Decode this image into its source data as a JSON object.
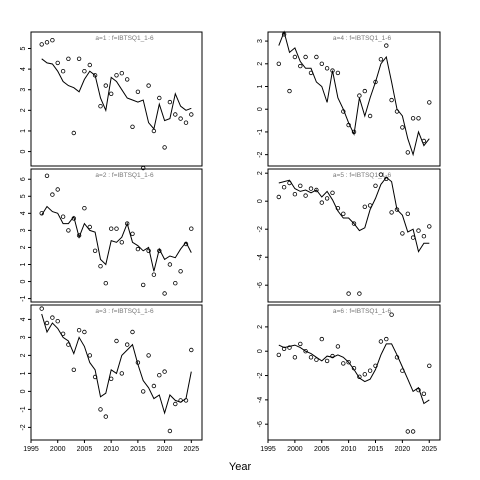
{
  "chart_data": {
    "type": "scatter",
    "xlabel": "Year",
    "x_ticks": [
      1995,
      2000,
      2005,
      2010,
      2015,
      2020,
      2025
    ],
    "xlim": [
      1995,
      2027
    ],
    "panels": [
      {
        "label": "a=1  :  f=IBTSQ1_1-6",
        "ylim": [
          -0.7,
          5.8
        ],
        "y_ticks": [
          0,
          1,
          2,
          3,
          4,
          5
        ],
        "fitted": {
          "x": [
            1997,
            1998,
            1999,
            2000,
            2001,
            2002,
            2003,
            2004,
            2005,
            2006,
            2007,
            2008,
            2009,
            2010,
            2011,
            2012,
            2013,
            2014,
            2015,
            2016,
            2017,
            2018,
            2019,
            2020,
            2021,
            2022,
            2023,
            2024,
            2025
          ],
          "y": [
            4.5,
            4.3,
            4.25,
            3.9,
            3.4,
            3.2,
            3.1,
            2.9,
            3.5,
            3.9,
            3.7,
            2.6,
            2.0,
            3.6,
            3.4,
            3.0,
            2.6,
            2.5,
            2.4,
            2.5,
            1.4,
            1.1,
            2.3,
            1.5,
            1.6,
            2.8,
            2.2,
            2.0,
            2.1
          ]
        },
        "observed": {
          "x": [
            1997,
            1998,
            1999,
            2000,
            2001,
            2002,
            2003,
            2004,
            2005,
            2006,
            2007,
            2008,
            2009,
            2010,
            2011,
            2012,
            2013,
            2014,
            2015,
            2016,
            2017,
            2018,
            2019,
            2020,
            2021,
            2022,
            2023,
            2024,
            2025
          ],
          "y": [
            5.2,
            5.3,
            5.4,
            4.3,
            3.9,
            4.5,
            0.9,
            4.5,
            3.9,
            4.2,
            3.7,
            2.2,
            3.2,
            2.8,
            3.7,
            3.8,
            3.5,
            1.2,
            2.9,
            -0.8,
            3.2,
            1.0,
            2.6,
            0.2,
            2.4,
            1.8,
            1.6,
            1.4,
            1.8
          ]
        }
      },
      {
        "label": "a=4  :  f=IBTSQ1_1-6",
        "ylim": [
          -2.5,
          3.4
        ],
        "y_ticks": [
          -2,
          -1,
          0,
          1,
          2,
          3
        ],
        "fitted": {
          "x": [
            1997,
            1998,
            1999,
            2000,
            2001,
            2002,
            2003,
            2004,
            2005,
            2006,
            2007,
            2008,
            2009,
            2010,
            2011,
            2012,
            2013,
            2014,
            2015,
            2016,
            2017,
            2018,
            2019,
            2020,
            2021,
            2022,
            2023,
            2024,
            2025
          ],
          "y": [
            2.8,
            3.4,
            2.5,
            2.7,
            2.1,
            1.8,
            1.8,
            1.2,
            1.0,
            0.3,
            1.7,
            0.5,
            0.0,
            -0.6,
            -1.1,
            0.5,
            -0.3,
            0.5,
            1.2,
            2.0,
            2.3,
            1.2,
            0.0,
            -0.3,
            -1.3,
            -2.0,
            -1.0,
            -1.6,
            -1.3
          ]
        },
        "observed": {
          "x": [
            1997,
            1998,
            1999,
            2000,
            2001,
            2002,
            2003,
            2004,
            2005,
            2006,
            2007,
            2008,
            2009,
            2010,
            2011,
            2012,
            2013,
            2014,
            2015,
            2016,
            2017,
            2018,
            2019,
            2020,
            2021,
            2022,
            2023,
            2024,
            2025
          ],
          "y": [
            2.0,
            3.3,
            0.8,
            2.3,
            1.9,
            2.3,
            1.6,
            2.3,
            2.0,
            1.8,
            1.7,
            1.6,
            -0.1,
            -0.7,
            -1.0,
            0.6,
            0.8,
            -0.3,
            1.2,
            2.2,
            2.8,
            0.4,
            -0.1,
            -0.8,
            -1.9,
            -0.4,
            -0.4,
            -1.4,
            0.3
          ]
        }
      },
      {
        "label": "a=2  :  f=IBTSQ1_1-6",
        "ylim": [
          -1.2,
          6.6
        ],
        "y_ticks": [
          -1,
          0,
          1,
          2,
          3,
          4,
          5,
          6
        ],
        "fitted": {
          "x": [
            1997,
            1998,
            1999,
            2000,
            2001,
            2002,
            2003,
            2004,
            2005,
            2006,
            2007,
            2008,
            2009,
            2010,
            2011,
            2012,
            2013,
            2014,
            2015,
            2016,
            2017,
            2018,
            2019,
            2020,
            2021,
            2022,
            2023,
            2024,
            2025
          ],
          "y": [
            3.9,
            4.4,
            4.1,
            4.0,
            3.4,
            3.4,
            3.8,
            2.6,
            3.4,
            3.0,
            2.9,
            1.3,
            1.0,
            2.4,
            2.3,
            2.6,
            3.4,
            2.3,
            2.1,
            1.8,
            2.0,
            0.6,
            1.9,
            1.3,
            1.5,
            1.4,
            1.9,
            2.3,
            1.7
          ]
        },
        "observed": {
          "x": [
            1997,
            1998,
            1999,
            2000,
            2001,
            2002,
            2003,
            2004,
            2005,
            2006,
            2007,
            2008,
            2009,
            2010,
            2011,
            2012,
            2013,
            2014,
            2015,
            2016,
            2017,
            2018,
            2019,
            2020,
            2021,
            2022,
            2023,
            2024,
            2025
          ],
          "y": [
            4.0,
            6.2,
            5.1,
            5.4,
            3.8,
            3.0,
            3.7,
            2.7,
            4.3,
            3.2,
            1.8,
            0.9,
            -0.1,
            3.1,
            3.1,
            2.3,
            3.4,
            2.8,
            1.9,
            -0.2,
            1.8,
            0.4,
            1.8,
            -0.7,
            1.0,
            -0.1,
            0.6,
            2.2,
            3.1
          ]
        }
      },
      {
        "label": "a=5  :  f=IBTSQ1_1-6",
        "ylim": [
          -7.2,
          2.3
        ],
        "y_ticks": [
          -6,
          -4,
          -2,
          0,
          2
        ],
        "fitted": {
          "x": [
            1997,
            1998,
            1999,
            2000,
            2001,
            2002,
            2003,
            2004,
            2005,
            2006,
            2007,
            2008,
            2009,
            2010,
            2011,
            2012,
            2013,
            2014,
            2015,
            2016,
            2017,
            2018,
            2019,
            2020,
            2021,
            2022,
            2023,
            2024,
            2025
          ],
          "y": [
            1.3,
            1.4,
            1.5,
            0.9,
            0.7,
            0.8,
            0.6,
            0.8,
            0.3,
            0.7,
            0.1,
            -0.7,
            -1.2,
            -1.2,
            -1.6,
            -2.1,
            -1.9,
            -0.6,
            0.2,
            1.2,
            1.7,
            1.4,
            -0.6,
            -1.0,
            -2.2,
            -2.0,
            -3.6,
            -3.0,
            -3.0
          ]
        },
        "observed": {
          "x": [
            1997,
            1998,
            1999,
            2000,
            2001,
            2002,
            2003,
            2004,
            2005,
            2006,
            2007,
            2008,
            2009,
            2010,
            2011,
            2012,
            2013,
            2014,
            2015,
            2016,
            2017,
            2018,
            2019,
            2020,
            2021,
            2022,
            2023,
            2024,
            2025
          ],
          "y": [
            0.3,
            1.0,
            1.3,
            0.5,
            1.1,
            0.4,
            0.9,
            0.8,
            -0.1,
            0.2,
            0.6,
            -0.5,
            -0.9,
            -6.6,
            -1.6,
            -6.6,
            -0.4,
            -0.3,
            1.1,
            1.9,
            1.6,
            -0.8,
            -0.6,
            -2.3,
            -0.9,
            -2.6,
            -2.1,
            -2.5,
            -1.8
          ]
        }
      },
      {
        "label": "a=3  :  f=IBTSQ1_1-6",
        "ylim": [
          -2.7,
          4.8
        ],
        "y_ticks": [
          -2,
          -1,
          0,
          1,
          2,
          3,
          4
        ],
        "fitted": {
          "x": [
            1997,
            1998,
            1999,
            2000,
            2001,
            2002,
            2003,
            2004,
            2005,
            2006,
            2007,
            2008,
            2009,
            2010,
            2011,
            2012,
            2013,
            2014,
            2015,
            2016,
            2017,
            2018,
            2019,
            2020,
            2021,
            2022,
            2023,
            2024,
            2025
          ],
          "y": [
            4.3,
            3.3,
            3.8,
            3.5,
            3.0,
            2.8,
            2.1,
            3.0,
            2.5,
            1.6,
            1.2,
            -0.3,
            -0.1,
            1.2,
            1.0,
            2.0,
            2.3,
            2.6,
            1.5,
            0.6,
            0.2,
            -0.4,
            -0.2,
            -1.2,
            -0.2,
            -0.5,
            -0.6,
            -0.4,
            1.1
          ]
        },
        "observed": {
          "x": [
            1997,
            1998,
            1999,
            2000,
            2001,
            2002,
            2003,
            2004,
            2005,
            2006,
            2007,
            2008,
            2009,
            2010,
            2011,
            2012,
            2013,
            2014,
            2015,
            2016,
            2017,
            2018,
            2019,
            2020,
            2021,
            2022,
            2023,
            2024,
            2025
          ],
          "y": [
            4.6,
            3.8,
            4.1,
            3.9,
            3.2,
            2.6,
            1.2,
            3.4,
            3.3,
            2.0,
            0.8,
            -1.0,
            -1.4,
            0.7,
            2.8,
            1.0,
            2.6,
            3.3,
            1.6,
            0.0,
            2.0,
            0.3,
            0.9,
            1.1,
            -2.2,
            -0.7,
            -0.5,
            -0.5,
            2.3
          ]
        }
      },
      {
        "label": "a=6  :  f=IBTSQ1_1-6",
        "ylim": [
          -7.3,
          3.8
        ],
        "y_ticks": [
          -6,
          -4,
          -2,
          0,
          2
        ],
        "fitted": {
          "x": [
            1997,
            1998,
            1999,
            2000,
            2001,
            2002,
            2003,
            2004,
            2005,
            2006,
            2007,
            2008,
            2009,
            2010,
            2011,
            2012,
            2013,
            2014,
            2015,
            2016,
            2017,
            2018,
            2019,
            2020,
            2021,
            2022,
            2023,
            2024,
            2025
          ],
          "y": [
            0.5,
            0.3,
            0.4,
            0.5,
            0.3,
            0.0,
            -0.2,
            -0.5,
            -0.8,
            -0.4,
            -0.5,
            -0.3,
            -0.5,
            -0.9,
            -1.5,
            -2.2,
            -2.5,
            -2.3,
            -1.5,
            -0.3,
            0.6,
            0.6,
            -0.3,
            -1.3,
            -2.3,
            -3.3,
            -3.0,
            -4.3,
            -4.0
          ]
        },
        "observed": {
          "x": [
            1997,
            1998,
            1999,
            2000,
            2001,
            2002,
            2003,
            2004,
            2005,
            2006,
            2007,
            2008,
            2009,
            2010,
            2011,
            2012,
            2013,
            2014,
            2015,
            2016,
            2017,
            2018,
            2019,
            2020,
            2021,
            2022,
            2023,
            2024,
            2025
          ],
          "y": [
            -0.3,
            0.2,
            0.3,
            -0.5,
            0.6,
            0.0,
            -0.5,
            -0.7,
            1.0,
            -0.8,
            -0.4,
            0.4,
            -1.0,
            -0.9,
            -1.4,
            -2.1,
            -1.9,
            -1.6,
            -1.2,
            0.8,
            1.0,
            3.0,
            -0.5,
            -1.6,
            -6.6,
            -6.6,
            -3.2,
            -3.5,
            -1.2
          ]
        }
      }
    ]
  }
}
